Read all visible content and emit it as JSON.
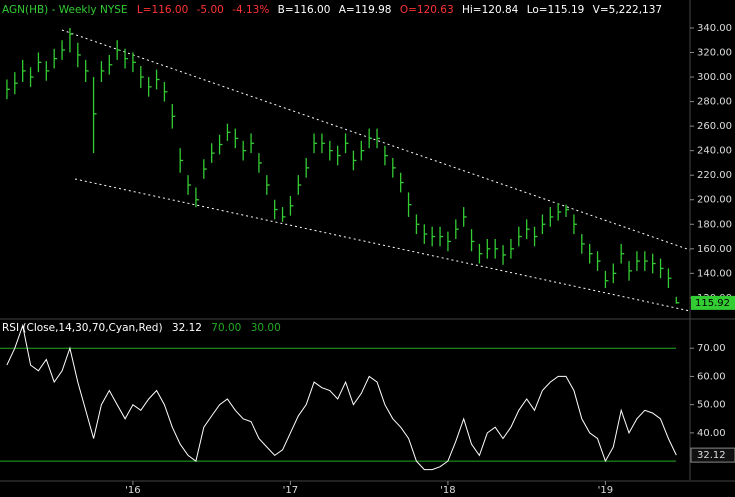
{
  "header": {
    "symbol": "AGN(HB) - Weekly  NYSE",
    "last": "L=116.00",
    "change": "-5.00",
    "pct": "-4.13%",
    "bid": "B=116.00",
    "ask": "A=119.98",
    "open": "O=120.63",
    "high": "Hi=120.84",
    "low": "Lo=115.19",
    "volume": "V=5,222,137"
  },
  "chart_data": {
    "type": "ohlc",
    "color": "#33cc33",
    "x": [
      2015.2,
      2015.25,
      2015.3,
      2015.35,
      2015.4,
      2015.45,
      2015.5,
      2015.55,
      2015.6,
      2015.65,
      2015.7,
      2015.75,
      2015.8,
      2015.85,
      2015.9,
      2015.95,
      2016.0,
      2016.05,
      2016.1,
      2016.15,
      2016.2,
      2016.25,
      2016.3,
      2016.35,
      2016.4,
      2016.45,
      2016.5,
      2016.55,
      2016.6,
      2016.65,
      2016.7,
      2016.75,
      2016.8,
      2016.85,
      2016.9,
      2016.95,
      2017.0,
      2017.05,
      2017.1,
      2017.15,
      2017.2,
      2017.25,
      2017.3,
      2017.35,
      2017.4,
      2017.45,
      2017.5,
      2017.55,
      2017.6,
      2017.65,
      2017.7,
      2017.75,
      2017.8,
      2017.85,
      2017.9,
      2017.95,
      2018.0,
      2018.05,
      2018.1,
      2018.15,
      2018.2,
      2018.25,
      2018.3,
      2018.35,
      2018.4,
      2018.45,
      2018.5,
      2018.55,
      2018.6,
      2018.65,
      2018.7,
      2018.75,
      2018.8,
      2018.85,
      2018.9,
      2018.95,
      2019.0,
      2019.05,
      2019.1,
      2019.15,
      2019.2,
      2019.25,
      2019.3,
      2019.35,
      2019.4,
      2019.45
    ],
    "high": [
      298,
      304,
      314,
      308,
      320,
      313,
      323,
      330,
      340,
      328,
      314,
      300,
      313,
      318,
      330,
      323,
      320,
      309,
      300,
      306,
      296,
      278,
      242,
      220,
      210,
      233,
      246,
      253,
      262,
      258,
      248,
      254,
      238,
      220,
      200,
      194,
      203,
      220,
      234,
      254,
      254,
      248,
      244,
      254,
      240,
      248,
      258,
      258,
      244,
      234,
      222,
      206,
      188,
      180,
      178,
      178,
      174,
      184,
      194,
      176,
      164,
      168,
      168,
      163,
      168,
      178,
      184,
      178,
      188,
      194,
      197,
      196,
      188,
      172,
      164,
      158,
      142,
      148,
      164,
      150,
      158,
      158,
      156,
      152,
      144,
      120.84
    ],
    "low": [
      282,
      286,
      296,
      292,
      304,
      297,
      307,
      314,
      320,
      308,
      296,
      238,
      296,
      302,
      314,
      307,
      304,
      291,
      284,
      290,
      280,
      258,
      222,
      204,
      194,
      217,
      230,
      237,
      248,
      242,
      232,
      238,
      222,
      204,
      184,
      182,
      187,
      204,
      218,
      238,
      238,
      232,
      228,
      238,
      224,
      232,
      242,
      242,
      228,
      218,
      206,
      186,
      172,
      164,
      162,
      162,
      158,
      168,
      178,
      158,
      148,
      152,
      152,
      147,
      152,
      162,
      168,
      162,
      172,
      178,
      183,
      186,
      172,
      156,
      148,
      142,
      128,
      132,
      148,
      134,
      142,
      142,
      140,
      136,
      128,
      115.19
    ],
    "close": [
      290,
      295,
      305,
      300,
      312,
      305,
      315,
      322,
      335,
      318,
      305,
      270,
      305,
      310,
      322,
      315,
      312,
      300,
      292,
      298,
      288,
      268,
      232,
      212,
      200,
      225,
      238,
      245,
      255,
      250,
      240,
      246,
      230,
      212,
      192,
      186,
      195,
      212,
      226,
      246,
      246,
      240,
      236,
      246,
      232,
      240,
      250,
      250,
      236,
      226,
      214,
      196,
      180,
      172,
      170,
      170,
      166,
      176,
      186,
      166,
      156,
      160,
      160,
      155,
      160,
      170,
      176,
      170,
      180,
      186,
      190,
      192,
      180,
      164,
      156,
      150,
      134,
      140,
      156,
      142,
      150,
      150,
      148,
      144,
      136,
      116
    ],
    "last_price": 115.92,
    "xlim": [
      2015.156,
      2019.537
    ],
    "xticks": [
      {
        "value": 2016,
        "label": "'16"
      },
      {
        "value": 2017,
        "label": "'17"
      },
      {
        "value": 2018,
        "label": "'18"
      },
      {
        "value": 2019,
        "label": "'19"
      }
    ],
    "ylim": [
      103.6,
      362.8
    ],
    "yticks": [
      {
        "value": 120,
        "label": "120.00"
      },
      {
        "value": 140,
        "label": "140.00"
      },
      {
        "value": 160,
        "label": "160.00"
      },
      {
        "value": 180,
        "label": "180.00"
      },
      {
        "value": 200,
        "label": "200.00"
      },
      {
        "value": 220,
        "label": "220.00"
      },
      {
        "value": 240,
        "label": "240.00"
      },
      {
        "value": 260,
        "label": "260.00"
      },
      {
        "value": 280,
        "label": "280.00"
      },
      {
        "value": 300,
        "label": "300.00"
      },
      {
        "value": 320,
        "label": "320.00"
      },
      {
        "value": 340,
        "label": "340.00"
      }
    ],
    "indicator": {
      "type": "line",
      "title": "RSI (Close,14,30,70,Cyan,Red)",
      "current": 32.12,
      "upper_label": "70.00",
      "lower_label": "30.00",
      "color": "#ffffff",
      "level_color": "#22aa22",
      "levels": [
        70,
        30
      ],
      "values": [
        64,
        70,
        78,
        64,
        62,
        66,
        58,
        62,
        70,
        58,
        48,
        38,
        50,
        55,
        50,
        45,
        50,
        48,
        52,
        55,
        50,
        42,
        36,
        32,
        30,
        42,
        46,
        50,
        52,
        48,
        45,
        44,
        38,
        35,
        32,
        34,
        40,
        46,
        50,
        58,
        56,
        55,
        52,
        58,
        50,
        54,
        60,
        58,
        50,
        45,
        42,
        38,
        30,
        27,
        27,
        28,
        30,
        37,
        45,
        36,
        32,
        40,
        42,
        38,
        42,
        48,
        52,
        48,
        55,
        58,
        60,
        60,
        55,
        45,
        40,
        38,
        30,
        35,
        48,
        40,
        45,
        48,
        47,
        45,
        38,
        32.12
      ],
      "ylim": [
        23.3,
        80
      ],
      "yticks": [
        {
          "value": 40,
          "label": "40.00"
        },
        {
          "value": 50,
          "label": "50.00"
        },
        {
          "value": 60,
          "label": "60.00"
        },
        {
          "value": 70,
          "label": "70.00"
        }
      ]
    }
  }
}
